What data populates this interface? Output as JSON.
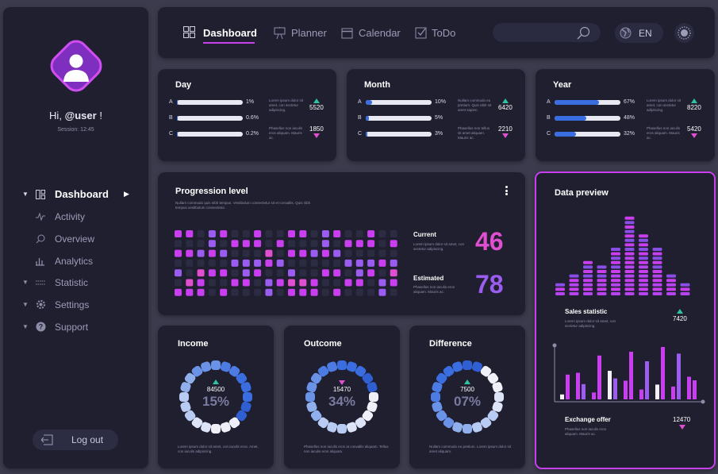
{
  "sidebar": {
    "greeting_prefix": "Hi,",
    "username": "@user",
    "greeting_suffix": "!",
    "session": "Session: 12:45",
    "menu": [
      {
        "label": "Dashboard",
        "icon": "grid-icon",
        "active": true
      },
      {
        "label": "Activity",
        "icon": "pulse-icon"
      },
      {
        "label": "Overview",
        "icon": "search-icon"
      },
      {
        "label": "Analytics",
        "icon": "bar-chart-icon"
      },
      {
        "label": "Statistic",
        "icon": "sliders-icon"
      },
      {
        "label": "Settings",
        "icon": "gear-icon"
      },
      {
        "label": "Support",
        "icon": "help-icon"
      }
    ],
    "logout": "Log out"
  },
  "topnav": {
    "tabs": [
      {
        "label": "Dashboard",
        "icon": "grid-icon",
        "active": true
      },
      {
        "label": "Planner",
        "icon": "easel-icon"
      },
      {
        "label": "Calendar",
        "icon": "calendar-icon"
      },
      {
        "label": "ToDo",
        "icon": "checkbox-icon"
      }
    ],
    "language": "EN"
  },
  "stats": [
    {
      "title": "Day",
      "bars": [
        {
          "label": "A",
          "pct": "1%",
          "value": 1
        },
        {
          "label": "B",
          "pct": "0.6%",
          "value": 0.6
        },
        {
          "label": "C",
          "pct": "0.2%",
          "value": 0.2
        }
      ],
      "desc1": "Lorem ipsum dolor sit amet, con sectetur adipiscing.",
      "up_value": "5520",
      "desc2": "Phasellus non iaculis eros aliquam. Mauris ac.",
      "down_value": "1850"
    },
    {
      "title": "Month",
      "bars": [
        {
          "label": "A",
          "pct": "10%",
          "value": 10
        },
        {
          "label": "B",
          "pct": "5%",
          "value": 5
        },
        {
          "label": "C",
          "pct": "3%",
          "value": 3
        }
      ],
      "desc1": "Nullam commodo eu pretium. Quis nibh sit amet sapien.",
      "up_value": "6420",
      "desc2": "Phasellus non tellus sit amet aliquam. Mauris ac.",
      "down_value": "2210"
    },
    {
      "title": "Year",
      "bars": [
        {
          "label": "A",
          "pct": "67%",
          "value": 67
        },
        {
          "label": "B",
          "pct": "48%",
          "value": 48
        },
        {
          "label": "C",
          "pct": "32%",
          "value": 32
        }
      ],
      "desc1": "Lorem ipsum dolor sit amet, con sectetur adipiscing.",
      "up_value": "8220",
      "desc2": "Phasellus non iaculis eros aliquam. Mauris ac.",
      "down_value": "5420"
    }
  ],
  "progression": {
    "title": "Progression level",
    "desc": "Nullam commodo quis nibh tempus. Vestibulum consectetur sit et convallis. Quis nibh tempus vestibulum consectetur.",
    "current_label": "Current",
    "current_desc": "Lorem ipsum dolor sit amet, con sectetur adipiscing.",
    "current_value": "46",
    "estimated_label": "Estimated",
    "estimated_desc": "Phasellus non iaculis eros aliquam. Mauris ac.",
    "estimated_value": "78"
  },
  "donuts": [
    {
      "title": "Income",
      "value": "84500",
      "percent": "15%",
      "trend": "up",
      "desc": "Lorem ipsum dolor sit amet, con iaculis eros. Amet, con iaculis adipiscing."
    },
    {
      "title": "Outcome",
      "value": "15470",
      "percent": "34%",
      "trend": "down",
      "desc": "Phasellus non iaculis eros at convallis aliquam. Tellus non iaculis eros aliquam."
    },
    {
      "title": "Difference",
      "value": "7500",
      "percent": "07%",
      "trend": "up",
      "desc": "Nullam commodo eu pretium. Lorem ipsum dolor sit amet aliquam."
    }
  ],
  "preview": {
    "title": "Data preview",
    "sales_label": "Sales statistic",
    "sales_desc": "Lorem ipsum dolor sit amet, con sectetur adipiscing.",
    "sales_value": "7420",
    "exchange_label": "Exchange offer",
    "exchange_desc": "Phasellus non iaculis eros aliquam. Mauris ac.",
    "exchange_value": "12470"
  },
  "colors": {
    "accent": "#c93ff0",
    "blue": "#3a6ee0",
    "purple": "#8a4ee8",
    "up": "#2ec4a0",
    "down": "#e04fd0",
    "card": "#1f1f2f"
  }
}
